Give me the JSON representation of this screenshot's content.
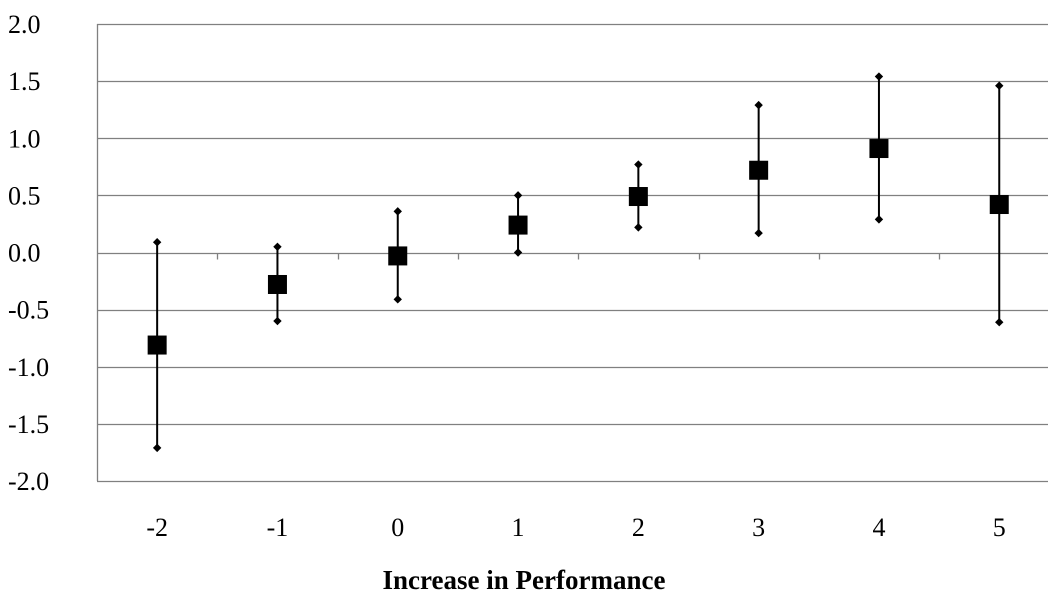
{
  "chart_data": {
    "type": "scatter",
    "title": "",
    "xlabel": "Increase in Performance",
    "ylabel": "",
    "categories": [
      "-2",
      "-1",
      "0",
      "1",
      "2",
      "3",
      "4",
      "5"
    ],
    "yticks": [
      "2.0",
      "1.5",
      "1.0",
      "0.5",
      "0.0",
      "-0.5",
      "-1.0",
      "-1.5",
      "-2.0"
    ],
    "ylim": [
      -2.0,
      2.0
    ],
    "grid": true,
    "legend": "none",
    "series": [
      {
        "estimate": [
          -0.81,
          -0.28,
          -0.03,
          0.24,
          0.49,
          0.72,
          0.91,
          0.42
        ],
        "upper": [
          0.09,
          0.05,
          0.36,
          0.5,
          0.77,
          1.29,
          1.54,
          1.46
        ],
        "lower": [
          -1.71,
          -0.6,
          -0.41,
          0.0,
          0.22,
          0.17,
          0.29,
          -0.61
        ]
      }
    ],
    "colors": {
      "marker": "#000000",
      "grid": "#808080",
      "axis": "#808080"
    }
  }
}
